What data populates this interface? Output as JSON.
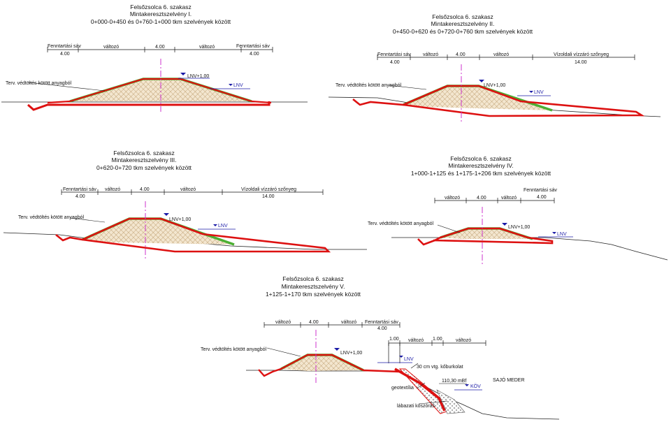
{
  "sections": [
    {
      "title": [
        "Felsőzsolca 6. szakasz",
        "Mintakeresztszelvény I.",
        "0+000-0+450 és 0+760-1+000 tkm szelvények között"
      ],
      "dims": [
        {
          "label": "Fenntartási sáv",
          "value": "4.00"
        },
        {
          "label": "változó",
          "value": ""
        },
        {
          "label": "",
          "value": "4.00"
        },
        {
          "label": "változó",
          "value": ""
        },
        {
          "label": "Fenntartási sáv",
          "value": "4.00"
        }
      ],
      "fill_label": "Terv. védtöltés kötött anyagból",
      "crest_label": "LNV+1,00",
      "water_label": "LNV"
    },
    {
      "title": [
        "Felsőzsolca 6. szakasz",
        "Mintakeresztszelvény II.",
        "0+450-0+620 és 0+720-0+760 tkm szelvények között"
      ],
      "dims": [
        {
          "label": "Fenntartási sáv",
          "value": "4.00"
        },
        {
          "label": "változó",
          "value": ""
        },
        {
          "label": "",
          "value": "4.00"
        },
        {
          "label": "változó",
          "value": ""
        },
        {
          "label": "Vízoldali vízzáró szőnyeg",
          "value": "14.00"
        }
      ],
      "fill_label": "Terv. védtöltés kötött anyagból",
      "crest_label": "LNV+1,00",
      "water_label": "LNV"
    },
    {
      "title": [
        "Felsőzsolca 6. szakasz",
        "Mintakeresztszelvény III.",
        "0+620-0+720 tkm szelvények között"
      ],
      "dims": [
        {
          "label": "Fenntartási sáv",
          "value": "4.00"
        },
        {
          "label": "változó",
          "value": ""
        },
        {
          "label": "",
          "value": "4.00"
        },
        {
          "label": "változó",
          "value": ""
        },
        {
          "label": "Vízoldali vízzáró szőnyeg",
          "value": "14.00"
        }
      ],
      "fill_label": "Terv. védtöltés kötött anyagból",
      "crest_label": "LNV+1,00",
      "water_label": "LNV"
    },
    {
      "title": [
        "Felsőzsolca 6. szakasz",
        "Mintakeresztszelvény IV.",
        "1+000-1+125 és 1+175-1+206 tkm szelvények között"
      ],
      "dims": [
        {
          "label": "változó",
          "value": ""
        },
        {
          "label": "",
          "value": "4.00"
        },
        {
          "label": "változó",
          "value": ""
        },
        {
          "label": "Fenntartási sáv",
          "value": "4.00"
        }
      ],
      "fill_label": "Terv. védtöltés kötött anyagból",
      "crest_label": "LNV+1,00",
      "water_label": "LNV"
    },
    {
      "title": [
        "Felsőzsolca 6. szakasz",
        "Mintakeresztszelvény V.",
        "1+125-1+170 tkm szelvények között"
      ],
      "dims": [
        {
          "label": "változó",
          "value": ""
        },
        {
          "label": "",
          "value": "4.00"
        },
        {
          "label": "változó",
          "value": ""
        },
        {
          "label": "Fenntartási sáv",
          "value": "4.00"
        }
      ],
      "dims2": [
        {
          "label": "",
          "value": "1.00"
        },
        {
          "label": "változó",
          "value": ""
        },
        {
          "label": "",
          "value": "1.00"
        },
        {
          "label": "változó",
          "value": ""
        }
      ],
      "fill_label": "Terv. védtöltés kötött anyagból",
      "crest_label": "LNV+1,00",
      "water_label": "LNV",
      "extra": {
        "paving": "30 cm vtg. kőburkolat",
        "geotextile": "geotextília",
        "level": "110,30 mBf",
        "kov": "KÖV",
        "toe": "lábazati kőszórás",
        "river": "SAJÓ MEDER"
      }
    }
  ],
  "colors": {
    "dike_outline": "#dd1111",
    "grass": "#4caf33",
    "hatch": "#d7b98a",
    "axis": "#cc33cc",
    "water": "#1a1aa6",
    "ground": "#222222"
  }
}
